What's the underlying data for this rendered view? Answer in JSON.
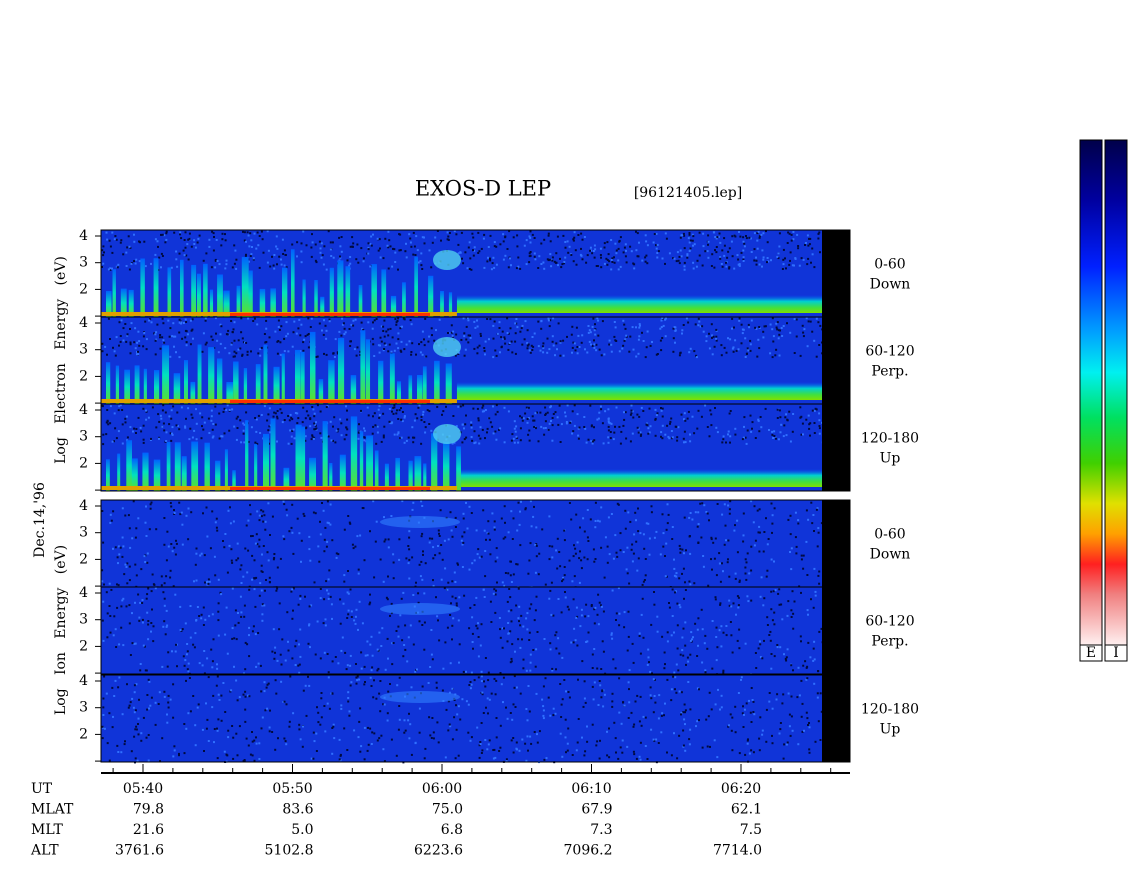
{
  "header": {
    "title": "EXOS-D LEP",
    "file": "[96121405.lep]"
  },
  "date": "Dec.14,'96",
  "groups": [
    {
      "label": "Log   Electron   Energy   (eV)"
    },
    {
      "label": "Log   Ion   Energy   (eV)"
    }
  ],
  "energy_ticks": [
    "4",
    "3",
    "2"
  ],
  "panels": [
    {
      "pitch": "0-60",
      "direction": "Down"
    },
    {
      "pitch": "60-120",
      "direction": "Perp."
    },
    {
      "pitch": "120-180",
      "direction": "Up"
    },
    {
      "pitch": "0-60",
      "direction": "Down"
    },
    {
      "pitch": "60-120",
      "direction": "Perp."
    },
    {
      "pitch": "120-180",
      "direction": "Up"
    }
  ],
  "ephemeris": {
    "rows": [
      {
        "label": "UT",
        "values": [
          "05:40",
          "05:50",
          "06:00",
          "06:10",
          "06:20"
        ]
      },
      {
        "label": "MLAT",
        "values": [
          "79.8",
          "83.6",
          "75.0",
          "67.9",
          "62.1"
        ]
      },
      {
        "label": "MLT",
        "values": [
          "21.6",
          "5.0",
          "6.8",
          "7.3",
          "7.5"
        ]
      },
      {
        "label": "ALT",
        "values": [
          "3761.6",
          "5102.8",
          "6223.6",
          "7096.2",
          "7714.0"
        ]
      }
    ]
  },
  "colorbars": [
    "E",
    "I"
  ]
}
